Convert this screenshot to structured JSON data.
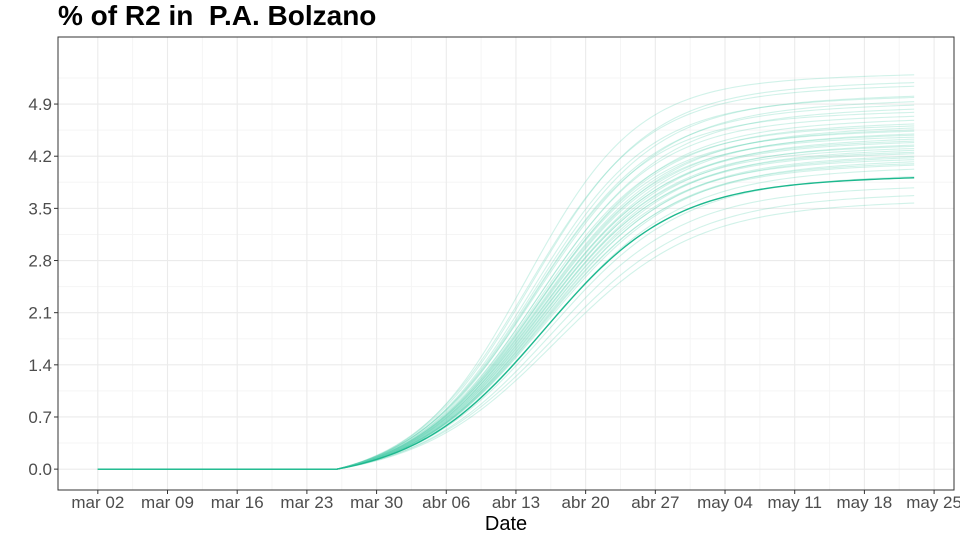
{
  "chart_data": {
    "type": "line",
    "title": "% of R2 in  P.A. Bolzano",
    "xlabel": "Date",
    "ylabel": "",
    "x_tick_labels": [
      "mar 02",
      "mar 09",
      "mar 16",
      "mar 23",
      "mar 30",
      "abr 06",
      "abr 13",
      "abr 20",
      "abr 27",
      "may 04",
      "may 11",
      "may 18",
      "may 25"
    ],
    "x_range_days": [
      -4,
      86
    ],
    "y_ticks": [
      0.0,
      0.7,
      1.4,
      2.1,
      2.8,
      3.5,
      4.2,
      4.9
    ],
    "y_tick_labels": [
      "0.0",
      "0.7",
      "1.4",
      "2.1",
      "2.8",
      "3.5",
      "4.2",
      "4.9"
    ],
    "ylim": [
      -0.28,
      5.8
    ],
    "grid": true,
    "x_start_day": 0,
    "x_end_day": 82,
    "onset_day": 24,
    "colors": {
      "main_line": "#1db88e",
      "ensemble_line": "#5ad2b0",
      "panel_border": "#333333",
      "grid_major": "#ebebeb",
      "grid_minor": "#f5f5f5"
    },
    "main_series": {
      "name": "",
      "plateau": 3.93,
      "midpoint_day": 44.8,
      "steepness": 0.155
    },
    "ensemble_series": [
      {
        "plateau": 5.3,
        "midpoint_day": 43.0,
        "steepness": 0.18
      },
      {
        "plateau": 5.2,
        "midpoint_day": 43.5,
        "steepness": 0.17
      },
      {
        "plateau": 5.15,
        "midpoint_day": 43.2,
        "steepness": 0.17
      },
      {
        "plateau": 5.02,
        "midpoint_day": 43.8,
        "steepness": 0.165
      },
      {
        "plateau": 5.0,
        "midpoint_day": 43.5,
        "steepness": 0.17
      },
      {
        "plateau": 4.95,
        "midpoint_day": 44.0,
        "steepness": 0.16
      },
      {
        "plateau": 4.9,
        "midpoint_day": 43.7,
        "steepness": 0.165
      },
      {
        "plateau": 4.85,
        "midpoint_day": 44.2,
        "steepness": 0.16
      },
      {
        "plateau": 4.8,
        "midpoint_day": 43.6,
        "steepness": 0.17
      },
      {
        "plateau": 4.75,
        "midpoint_day": 44.0,
        "steepness": 0.165
      },
      {
        "plateau": 4.7,
        "midpoint_day": 44.3,
        "steepness": 0.16
      },
      {
        "plateau": 4.65,
        "midpoint_day": 44.1,
        "steepness": 0.16
      },
      {
        "plateau": 4.62,
        "midpoint_day": 43.9,
        "steepness": 0.165
      },
      {
        "plateau": 4.6,
        "midpoint_day": 44.4,
        "steepness": 0.155
      },
      {
        "plateau": 4.57,
        "midpoint_day": 44.2,
        "steepness": 0.16
      },
      {
        "plateau": 4.55,
        "midpoint_day": 44.0,
        "steepness": 0.165
      },
      {
        "plateau": 4.52,
        "midpoint_day": 44.5,
        "steepness": 0.155
      },
      {
        "plateau": 4.5,
        "midpoint_day": 44.3,
        "steepness": 0.16
      },
      {
        "plateau": 4.47,
        "midpoint_day": 44.1,
        "steepness": 0.165
      },
      {
        "plateau": 4.45,
        "midpoint_day": 44.6,
        "steepness": 0.155
      },
      {
        "plateau": 4.42,
        "midpoint_day": 44.4,
        "steepness": 0.16
      },
      {
        "plateau": 4.4,
        "midpoint_day": 44.2,
        "steepness": 0.16
      },
      {
        "plateau": 4.37,
        "midpoint_day": 44.7,
        "steepness": 0.155
      },
      {
        "plateau": 4.35,
        "midpoint_day": 44.5,
        "steepness": 0.16
      },
      {
        "plateau": 4.32,
        "midpoint_day": 44.3,
        "steepness": 0.16
      },
      {
        "plateau": 4.3,
        "midpoint_day": 44.8,
        "steepness": 0.155
      },
      {
        "plateau": 4.27,
        "midpoint_day": 44.6,
        "steepness": 0.16
      },
      {
        "plateau": 4.25,
        "midpoint_day": 44.4,
        "steepness": 0.16
      },
      {
        "plateau": 4.22,
        "midpoint_day": 44.9,
        "steepness": 0.155
      },
      {
        "plateau": 4.2,
        "midpoint_day": 44.7,
        "steepness": 0.155
      },
      {
        "plateau": 4.17,
        "midpoint_day": 44.5,
        "steepness": 0.16
      },
      {
        "plateau": 4.15,
        "midpoint_day": 45.0,
        "steepness": 0.15
      },
      {
        "plateau": 4.12,
        "midpoint_day": 44.8,
        "steepness": 0.155
      },
      {
        "plateau": 4.1,
        "midpoint_day": 44.6,
        "steepness": 0.155
      },
      {
        "plateau": 4.05,
        "midpoint_day": 45.1,
        "steepness": 0.15
      },
      {
        "plateau": 3.95,
        "midpoint_day": 45.3,
        "steepness": 0.15
      },
      {
        "plateau": 3.8,
        "midpoint_day": 45.5,
        "steepness": 0.15
      },
      {
        "plateau": 3.7,
        "midpoint_day": 45.8,
        "steepness": 0.145
      },
      {
        "plateau": 3.6,
        "midpoint_day": 46.0,
        "steepness": 0.145
      }
    ]
  }
}
